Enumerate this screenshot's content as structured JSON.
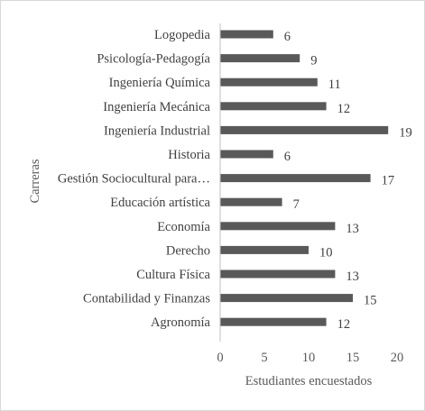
{
  "chart_data": {
    "type": "bar",
    "orientation": "horizontal",
    "categories": [
      "Logopedia",
      "Psicología-Pedagogía",
      "Ingeniería Química",
      "Ingeniería Mecánica",
      "Ingeniería Industrial",
      "Historia",
      "Gestión Sociocultural para…",
      "Educación artística",
      "Economía",
      "Derecho",
      "Cultura Física",
      "Contabilidad y Finanzas",
      "Agronomía"
    ],
    "values": [
      6,
      9,
      11,
      12,
      19,
      6,
      17,
      7,
      13,
      10,
      13,
      15,
      12
    ],
    "value_labels": [
      "6",
      "9",
      "11",
      "12",
      "19",
      "6",
      "17",
      "7",
      "13",
      "10",
      "13",
      "15",
      "12"
    ],
    "xlabel": "Estudiantes encuestados",
    "ylabel": "Carreras",
    "xlim": [
      0,
      20
    ],
    "xticks": [
      "0",
      "5",
      "10",
      "15",
      "20"
    ],
    "grid": false,
    "legend": "none",
    "bar_color": "#595959"
  }
}
